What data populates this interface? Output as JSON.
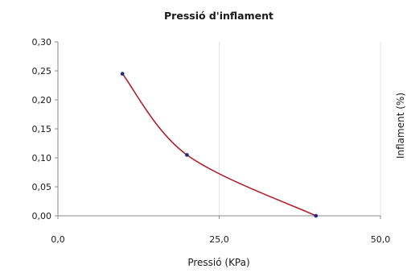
{
  "chart_data": {
    "type": "line",
    "title": "Pressió d'inflament",
    "xlabel": "Pressió (KPa)",
    "ylabel": "Inflament (%)",
    "xlim": [
      0,
      50
    ],
    "ylim": [
      0,
      0.3
    ],
    "xticks": [
      0,
      25,
      50
    ],
    "xtick_labels": [
      "0,0",
      "25,0",
      "50,0"
    ],
    "yticks": [
      0,
      0.05,
      0.1,
      0.15,
      0.2,
      0.25,
      0.3
    ],
    "ytick_labels": [
      "0,00",
      "0,05",
      "0,10",
      "0,15",
      "0,20",
      "0,25",
      "0,30"
    ],
    "grid": true,
    "smooth": true,
    "line_color": "#b0202a",
    "marker_color": "#1f2a80",
    "series": [
      {
        "x": [
          10,
          20,
          40
        ],
        "y": [
          0.245,
          0.105,
          0.0
        ]
      }
    ]
  }
}
